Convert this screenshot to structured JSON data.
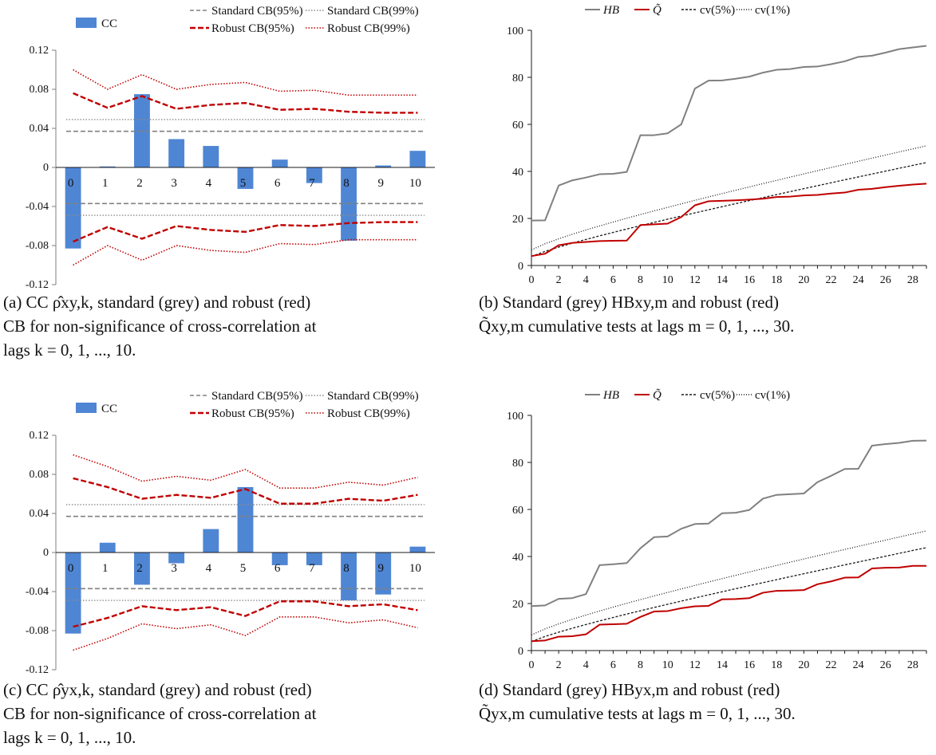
{
  "chart_data": [
    {
      "id": "a",
      "type": "bar",
      "categories": [
        "0",
        "1",
        "2",
        "3",
        "4",
        "5",
        "6",
        "7",
        "8",
        "9",
        "10"
      ],
      "ylim": [
        -0.12,
        0.12
      ],
      "yticks": [
        "-0.12",
        "-0.08",
        "-0.04",
        "0",
        "0.04",
        "0.08",
        "0.12"
      ],
      "ytick_values": [
        -0.12,
        -0.08,
        -0.04,
        0,
        0.04,
        0.08,
        0.12
      ],
      "legend_cc": "CC",
      "legend_std95": "Standard CB(95%)",
      "legend_std99": "Standard CB(99%)",
      "legend_rob95": "Robust CB(95%)",
      "legend_rob99": "Robust CB(99%)",
      "cc": [
        -0.083,
        0.001,
        0.075,
        0.029,
        0.022,
        -0.022,
        0.008,
        -0.016,
        -0.075,
        0.002,
        0.017
      ],
      "std95": 0.037,
      "std99": 0.049,
      "rob95": [
        0.076,
        0.061,
        0.073,
        0.06,
        0.064,
        0.066,
        0.059,
        0.06,
        0.057,
        0.056,
        0.056
      ],
      "rob99": [
        0.1,
        0.08,
        0.095,
        0.08,
        0.085,
        0.087,
        0.078,
        0.079,
        0.074,
        0.074,
        0.074
      ],
      "caption": [
        "(a) CC ρ̂xy,k, standard (grey) and robust (red)",
        "CB for non-significance of cross-correlation at",
        "lags k = 0, 1, ..., 10."
      ]
    },
    {
      "id": "b",
      "type": "line",
      "ylim": [
        0,
        100
      ],
      "xlim": [
        0,
        29
      ],
      "yticks": [
        "0",
        "20",
        "40",
        "60",
        "80",
        "100"
      ],
      "ytick_values": [
        0,
        20,
        40,
        60,
        80,
        100
      ],
      "xticks": [
        "0",
        "2",
        "4",
        "6",
        "8",
        "10",
        "12",
        "14",
        "16",
        "18",
        "20",
        "22",
        "24",
        "26",
        "28"
      ],
      "xtick_values": [
        0,
        2,
        4,
        6,
        8,
        10,
        12,
        14,
        16,
        18,
        20,
        22,
        24,
        26,
        28
      ],
      "legend_hb": "HB",
      "legend_q": "Q̃",
      "legend_cv5": "cv(5%)",
      "legend_cv1": "cv(1%)",
      "hb": [
        19.1,
        19.2,
        34.0,
        36.2,
        37.4,
        38.8,
        39.0,
        39.8,
        55.4,
        55.4,
        56.2,
        60.0,
        75.2,
        78.6,
        78.7,
        79.4,
        80.3,
        82.0,
        83.2,
        83.5,
        84.4,
        84.6,
        85.6,
        86.8,
        88.7,
        89.2,
        90.5,
        92.0,
        92.7,
        93.4
      ],
      "q": [
        4.0,
        5.0,
        8.6,
        9.6,
        10.0,
        10.4,
        10.5,
        10.6,
        17.2,
        17.5,
        17.8,
        20.6,
        25.6,
        27.3,
        27.5,
        27.7,
        28.0,
        28.4,
        29.1,
        29.3,
        29.8,
        30.0,
        30.6,
        31.0,
        32.2,
        32.6,
        33.3,
        33.9,
        34.4,
        34.8
      ],
      "cv5": [
        3.84,
        5.99,
        7.81,
        9.49,
        11.07,
        12.59,
        14.07,
        15.51,
        16.92,
        18.31,
        19.68,
        21.03,
        22.36,
        23.68,
        25.0,
        26.3,
        27.59,
        28.87,
        30.14,
        31.41,
        32.67,
        33.92,
        35.17,
        36.42,
        37.65,
        38.89,
        40.11,
        41.34,
        42.56,
        43.77
      ],
      "cv1": [
        6.63,
        9.21,
        11.34,
        13.28,
        15.09,
        16.81,
        18.48,
        20.09,
        21.67,
        23.21,
        24.72,
        26.22,
        27.69,
        29.14,
        30.58,
        32.0,
        33.41,
        34.81,
        36.19,
        37.57,
        38.93,
        40.29,
        41.64,
        42.98,
        44.31,
        45.64,
        46.96,
        48.28,
        49.59,
        50.89
      ],
      "caption": [
        "(b) Standard (grey) HBxy,m and robust (red)",
        "Q̃xy,m cumulative tests at lags m = 0, 1, ..., 30."
      ]
    },
    {
      "id": "c",
      "type": "bar",
      "categories": [
        "0",
        "1",
        "2",
        "3",
        "4",
        "5",
        "6",
        "7",
        "8",
        "9",
        "10"
      ],
      "ylim": [
        -0.12,
        0.12
      ],
      "yticks": [
        "-0.12",
        "-0.08",
        "-0.04",
        "0",
        "0.04",
        "0.08",
        "0.12"
      ],
      "ytick_values": [
        -0.12,
        -0.08,
        -0.04,
        0,
        0.04,
        0.08,
        0.12
      ],
      "legend_cc": "CC",
      "legend_std95": "Standard CB(95%)",
      "legend_std99": "Standard CB(99%)",
      "legend_rob95": "Robust CB(95%)",
      "legend_rob99": "Robust CB(99%)",
      "cc": [
        -0.083,
        0.01,
        -0.033,
        -0.011,
        0.024,
        0.067,
        -0.013,
        -0.013,
        -0.049,
        -0.043,
        0.006
      ],
      "std95": 0.037,
      "std99": 0.049,
      "rob95": [
        0.076,
        0.067,
        0.055,
        0.059,
        0.056,
        0.065,
        0.05,
        0.05,
        0.055,
        0.053,
        0.059
      ],
      "rob99": [
        0.1,
        0.088,
        0.073,
        0.078,
        0.074,
        0.085,
        0.066,
        0.066,
        0.072,
        0.069,
        0.077
      ],
      "caption": [
        "(c) CC ρ̂yx,k, standard (grey) and robust (red)",
        "CB for non-significance of cross-correlation at",
        "lags k = 0, 1, ..., 10."
      ]
    },
    {
      "id": "d",
      "type": "line",
      "ylim": [
        0,
        100
      ],
      "xlim": [
        0,
        29
      ],
      "yticks": [
        "0",
        "20",
        "40",
        "60",
        "80",
        "100"
      ],
      "ytick_values": [
        0,
        20,
        40,
        60,
        80,
        100
      ],
      "xticks": [
        "0",
        "2",
        "4",
        "6",
        "8",
        "10",
        "12",
        "14",
        "16",
        "18",
        "20",
        "22",
        "24",
        "26",
        "28"
      ],
      "xtick_values": [
        0,
        2,
        4,
        6,
        8,
        10,
        12,
        14,
        16,
        18,
        20,
        22,
        24,
        26,
        28
      ],
      "legend_hb": "HB",
      "legend_q": "Q̃",
      "legend_cv5": "cv(5%)",
      "legend_cv1": "cv(1%)",
      "hb": [
        18.9,
        19.2,
        22.0,
        22.3,
        24.0,
        36.3,
        36.7,
        37.2,
        43.5,
        48.2,
        48.5,
        51.8,
        53.8,
        54.0,
        58.4,
        58.6,
        59.8,
        64.6,
        66.2,
        66.5,
        66.8,
        71.6,
        74.3,
        77.2,
        77.3,
        87.1,
        87.8,
        88.3,
        89.2,
        89.3
      ],
      "q": [
        4.0,
        4.3,
        5.9,
        6.1,
        6.9,
        11.0,
        11.2,
        11.4,
        14.3,
        16.6,
        16.8,
        18.0,
        18.8,
        19.0,
        21.8,
        21.9,
        22.3,
        24.6,
        25.4,
        25.5,
        25.7,
        28.2,
        29.4,
        31.0,
        31.1,
        34.9,
        35.2,
        35.3,
        36.0,
        36.0
      ],
      "cv5": [
        3.84,
        5.99,
        7.81,
        9.49,
        11.07,
        12.59,
        14.07,
        15.51,
        16.92,
        18.31,
        19.68,
        21.03,
        22.36,
        23.68,
        25.0,
        26.3,
        27.59,
        28.87,
        30.14,
        31.41,
        32.67,
        33.92,
        35.17,
        36.42,
        37.65,
        38.89,
        40.11,
        41.34,
        42.56,
        43.77
      ],
      "cv1": [
        6.63,
        9.21,
        11.34,
        13.28,
        15.09,
        16.81,
        18.48,
        20.09,
        21.67,
        23.21,
        24.72,
        26.22,
        27.69,
        29.14,
        30.58,
        32.0,
        33.41,
        34.81,
        36.19,
        37.57,
        38.93,
        40.29,
        41.64,
        42.98,
        44.31,
        45.64,
        46.96,
        48.28,
        49.59,
        50.89
      ],
      "caption": [
        "(d) Standard (grey) HByx,m and robust (red)",
        "Q̃yx,m cumulative tests at lags m = 0, 1, ..., 30."
      ]
    }
  ],
  "colors": {
    "bar": "#4f86d4",
    "grey": "#808080",
    "grey_dot": "#8c8c8c",
    "red": "#c00000",
    "black": "#1a1a1a"
  }
}
